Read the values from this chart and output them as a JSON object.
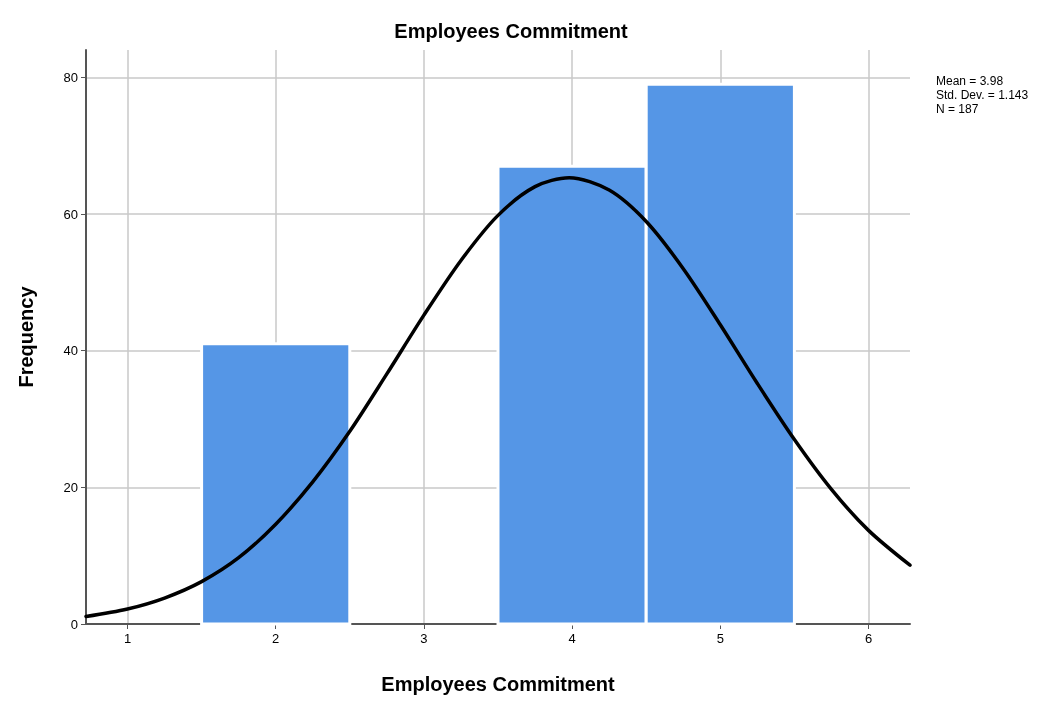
{
  "chart_data": {
    "type": "histogram",
    "title": "Employees Commitment",
    "xlabel": "Employees Commitment",
    "ylabel": "Frequency",
    "bins": [
      1.5,
      2.5,
      3.5,
      4.5,
      5.5
    ],
    "values": [
      41,
      0,
      67,
      79
    ],
    "color": "#5596e6",
    "series": [
      {
        "type": "line",
        "color": "#000000",
        "x": [
          0.72,
          1,
          1.25,
          1.5,
          1.75,
          2,
          2.25,
          2.5,
          2.75,
          3,
          3.25,
          3.5,
          3.75,
          3.98,
          4.25,
          4.5,
          4.75,
          5,
          5.25,
          5.5,
          5.75,
          6,
          6.28
        ],
        "values": [
          1.1,
          2.2,
          3.8,
          6.2,
          9.7,
          14.6,
          20.8,
          28.2,
          36.6,
          45.2,
          53.2,
          59.8,
          64,
          65.3,
          63.5,
          58.9,
          52,
          43.8,
          35.2,
          27,
          19.7,
          13.7,
          8.6
        ]
      }
    ],
    "xlim": [
      0.72,
      6.28
    ],
    "xticks": [
      1,
      2,
      3,
      4,
      5,
      6
    ],
    "ylim": [
      0,
      84
    ],
    "yticks": [
      0,
      20,
      40,
      60,
      80
    ],
    "grid": true,
    "annotations": [
      "Mean = 3.98",
      "Std. Dev. = 1.143",
      "N = 187"
    ]
  }
}
